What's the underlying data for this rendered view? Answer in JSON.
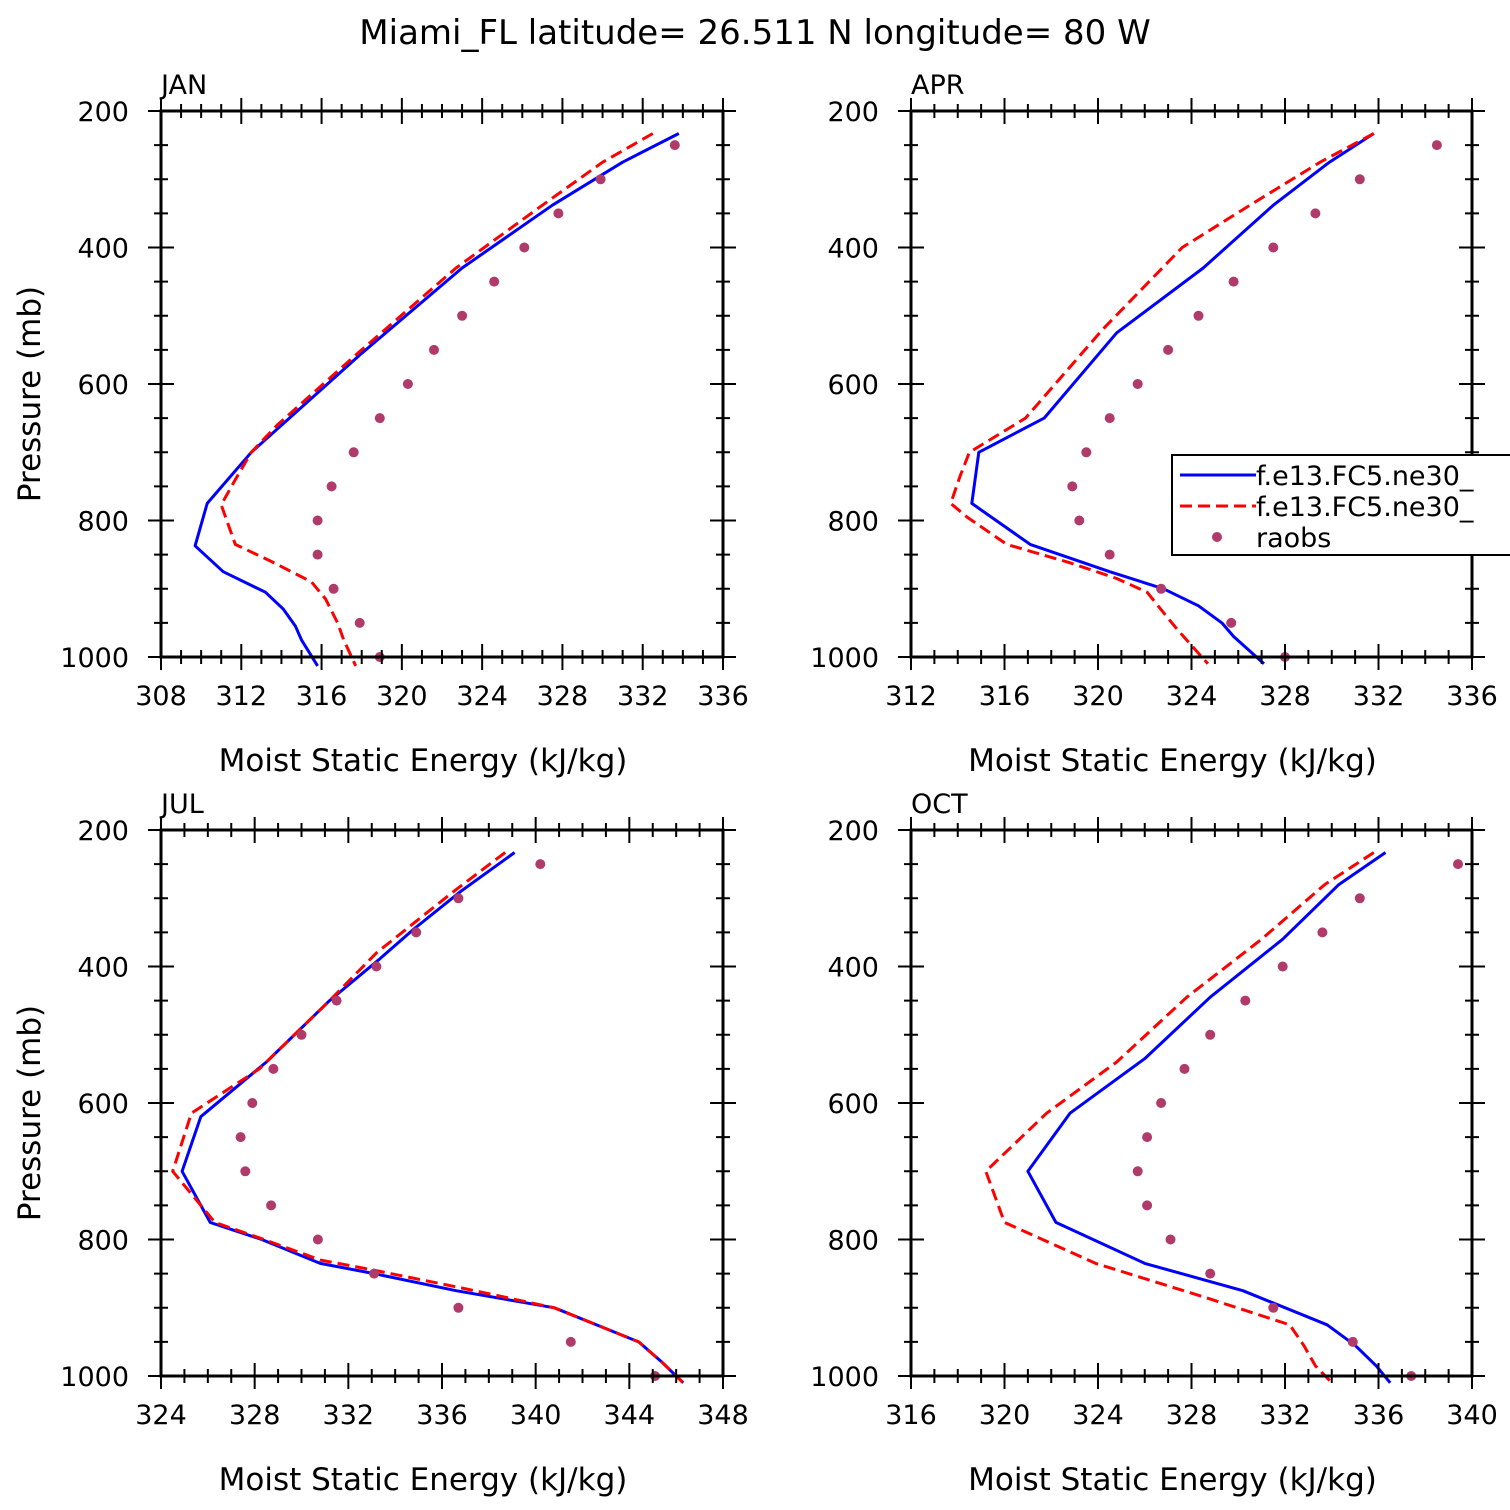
{
  "title": "Miami_FL  latitude= 26.511 N longitude= 80 W",
  "legend": {
    "placement": "inside APR panel, right",
    "entries": [
      {
        "label": "f.e13.FC5.ne30_",
        "style": "solid",
        "color": "#0000ff"
      },
      {
        "label": "f.e13.FC5.ne30_",
        "style": "dashed",
        "color": "#ff0000"
      },
      {
        "label": "raobs",
        "style": "dots",
        "color": "#b03a6a"
      }
    ]
  },
  "chart_data": [
    {
      "type": "line",
      "label": "JAN",
      "xlabel": "Moist Static Energy (kJ/kg)",
      "ylabel": "Pressure (mb)",
      "xlim": [
        308,
        336
      ],
      "ylim": [
        1000,
        200
      ],
      "xticks": [
        308,
        312,
        316,
        320,
        324,
        328,
        332,
        336
      ],
      "yticks": [
        200,
        400,
        600,
        800,
        1000
      ],
      "series": [
        {
          "style": "solid",
          "color": "#0000ff",
          "x": [
            333.8,
            331,
            327.5,
            323,
            318,
            312.5,
            310.3,
            309.7,
            311.1,
            313.2,
            314.1,
            314.7,
            315,
            315.8
          ],
          "y": [
            233,
            275,
            338,
            430,
            555,
            700,
            775,
            837,
            875,
            905,
            930,
            955,
            975,
            1013
          ]
        },
        {
          "style": "dashed",
          "color": "#ff0000",
          "x": [
            332.5,
            330,
            327,
            322.7,
            317.8,
            313.8,
            312.5,
            311.7,
            311,
            311.7,
            313.5,
            315.5,
            316.2,
            316.8,
            317.1,
            317.7
          ],
          "y": [
            233,
            275,
            338,
            430,
            555,
            660,
            700,
            740,
            777,
            835,
            860,
            890,
            915,
            950,
            975,
            1013
          ]
        },
        {
          "style": "dots",
          "color": "#b03a6a",
          "x": [
            333.6,
            329.9,
            327.8,
            326.1,
            324.6,
            323,
            321.6,
            320.3,
            318.9,
            317.6,
            316.5,
            315.8,
            315.8,
            316.6,
            317.9,
            318.9
          ],
          "y": [
            250,
            300,
            350,
            400,
            450,
            500,
            550,
            600,
            650,
            700,
            750,
            800,
            850,
            900,
            950,
            1000
          ]
        }
      ]
    },
    {
      "type": "line",
      "label": "APR",
      "xlabel": "Moist Static Energy (kJ/kg)",
      "ylabel": "",
      "xlim": [
        312,
        336
      ],
      "ylim": [
        1000,
        200
      ],
      "xticks": [
        312,
        316,
        320,
        324,
        328,
        332,
        336
      ],
      "yticks": [
        200,
        400,
        600,
        800,
        1000
      ],
      "series": [
        {
          "style": "solid",
          "color": "#0000ff",
          "x": [
            331.8,
            329.9,
            327.5,
            324.5,
            320.8,
            317.7,
            314.9,
            314.6,
            317.1,
            320.5,
            322.8,
            324.3,
            325.3,
            325.8,
            327.1
          ],
          "y": [
            233,
            275,
            338,
            430,
            525,
            650,
            700,
            775,
            835,
            875,
            900,
            925,
            950,
            970,
            1010
          ]
        },
        {
          "style": "dashed",
          "color": "#ff0000",
          "x": [
            331.8,
            329.5,
            326.5,
            323.6,
            320.2,
            316.9,
            314.5,
            314.1,
            313.7,
            314.4,
            316.1,
            318.8,
            320.8,
            322.1,
            322.8,
            323.4,
            324.7
          ],
          "y": [
            233,
            275,
            338,
            400,
            520,
            650,
            700,
            735,
            775,
            795,
            835,
            862,
            885,
            905,
            935,
            960,
            1010
          ]
        },
        {
          "style": "dots",
          "color": "#b03a6a",
          "x": [
            334.5,
            331.2,
            329.3,
            327.5,
            325.8,
            324.3,
            323,
            321.7,
            320.5,
            319.5,
            318.9,
            319.2,
            320.5,
            322.7,
            325.7,
            328
          ],
          "y": [
            250,
            300,
            350,
            400,
            450,
            500,
            550,
            600,
            650,
            700,
            750,
            800,
            850,
            900,
            950,
            1000
          ]
        }
      ]
    },
    {
      "type": "line",
      "label": "JUL",
      "xlabel": "Moist Static Energy (kJ/kg)",
      "ylabel": "Pressure (mb)",
      "xlim": [
        324,
        348
      ],
      "ylim": [
        1000,
        200
      ],
      "xticks": [
        324,
        328,
        332,
        336,
        340,
        344,
        348
      ],
      "yticks": [
        200,
        400,
        600,
        800,
        1000
      ],
      "series": [
        {
          "style": "solid",
          "color": "#0000ff",
          "x": [
            339.1,
            336.8,
            334.8,
            333.3,
            331.2,
            330,
            328.5,
            325.7,
            324.9,
            326.1,
            328.3,
            330.8,
            333.1,
            336.6,
            340.8,
            344.4,
            345.4,
            346.3
          ],
          "y": [
            233,
            290,
            345,
            390,
            450,
            490,
            540,
            620,
            700,
            775,
            800,
            835,
            850,
            875,
            900,
            950,
            980,
            1010
          ]
        },
        {
          "style": "dashed",
          "color": "#ff0000",
          "x": [
            338.7,
            336.5,
            333.2,
            331.2,
            330,
            328.2,
            325.3,
            324.5,
            326.3,
            328.4,
            330.8,
            333.1,
            336.7,
            340.8,
            344.4,
            345.4,
            346.3
          ],
          "y": [
            233,
            290,
            380,
            450,
            490,
            550,
            615,
            700,
            775,
            800,
            830,
            845,
            870,
            900,
            950,
            980,
            1010
          ]
        },
        {
          "style": "dots",
          "color": "#b03a6a",
          "x": [
            340.2,
            336.7,
            334.9,
            333.2,
            331.5,
            330,
            328.8,
            327.9,
            327.4,
            327.6,
            328.7,
            330.7,
            333.1,
            336.7,
            341.5,
            345.1
          ],
          "y": [
            250,
            300,
            350,
            400,
            450,
            500,
            550,
            600,
            650,
            700,
            750,
            800,
            850,
            900,
            950,
            1000
          ]
        }
      ]
    },
    {
      "type": "line",
      "label": "OCT",
      "xlabel": "Moist Static Energy (kJ/kg)",
      "ylabel": "",
      "xlim": [
        316,
        340
      ],
      "ylim": [
        1000,
        200
      ],
      "xticks": [
        316,
        320,
        324,
        328,
        332,
        336,
        340
      ],
      "yticks": [
        200,
        400,
        600,
        800,
        1000
      ],
      "series": [
        {
          "style": "solid",
          "color": "#0000ff",
          "x": [
            336.3,
            334.3,
            331.9,
            328.8,
            326,
            322.8,
            321,
            322.2,
            326,
            330.2,
            333.8,
            335,
            335.9,
            336.5
          ],
          "y": [
            233,
            280,
            360,
            445,
            535,
            615,
            700,
            775,
            835,
            875,
            925,
            955,
            985,
            1010
          ]
        },
        {
          "style": "dashed",
          "color": "#ff0000",
          "x": [
            335.8,
            333.7,
            331,
            327.8,
            324.8,
            321.8,
            319.2,
            320,
            323.9,
            328.6,
            332.2,
            332.8,
            333.3,
            334
          ],
          "y": [
            233,
            280,
            360,
            445,
            540,
            615,
            700,
            775,
            835,
            885,
            925,
            955,
            985,
            1010
          ]
        },
        {
          "style": "dots",
          "color": "#b03a6a",
          "x": [
            339.4,
            335.2,
            333.6,
            331.9,
            330.3,
            328.8,
            327.7,
            326.7,
            326.1,
            325.7,
            326.1,
            327.1,
            328.8,
            331.5,
            334.9,
            337.4
          ],
          "y": [
            250,
            300,
            350,
            400,
            450,
            500,
            550,
            600,
            650,
            700,
            750,
            800,
            850,
            900,
            950,
            1000
          ]
        }
      ]
    }
  ]
}
